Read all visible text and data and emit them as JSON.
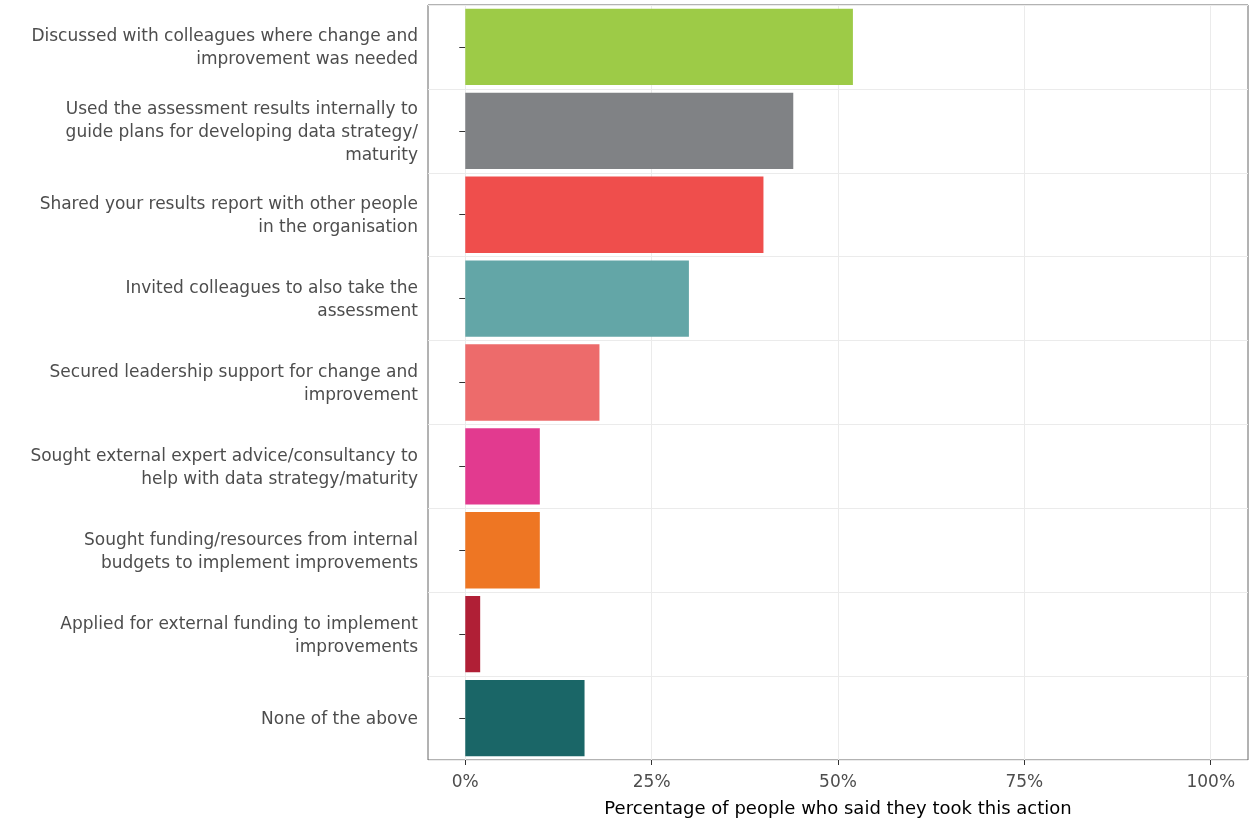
{
  "chart_data": {
    "type": "bar",
    "orientation": "horizontal",
    "categories": [
      "Discussed with colleagues where change and\nimprovement was needed",
      "Used the assessment results internally to\nguide plans for developing data strategy/\nmaturity",
      "Shared your results report with other people\nin the organisation",
      "Invited colleagues to also take the\nassessment",
      "Secured leadership support for change and\nimprovement",
      "Sought external expert advice/consultancy to\nhelp with data strategy/maturity",
      "Sought funding/resources from internal\nbudgets to implement improvements",
      "Applied for external funding to implement\nimprovements",
      "None of the above"
    ],
    "values": [
      52,
      44,
      40,
      30,
      18,
      10,
      10,
      2,
      16
    ],
    "colors": [
      "#9dcb47",
      "#808285",
      "#ef4e4c",
      "#63a6a7",
      "#ed6b6b",
      "#e23a8f",
      "#ee7623",
      "#b01f36",
      "#1a6667"
    ],
    "xlabel": "Percentage of people who said they took this action",
    "xlim": [
      -5,
      105
    ],
    "xticks": [
      {
        "value": 0,
        "label": "0%"
      },
      {
        "value": 25,
        "label": "25%"
      },
      {
        "value": 50,
        "label": "50%"
      },
      {
        "value": 75,
        "label": "75%"
      },
      {
        "value": 100,
        "label": "100%"
      }
    ],
    "grid": true
  }
}
